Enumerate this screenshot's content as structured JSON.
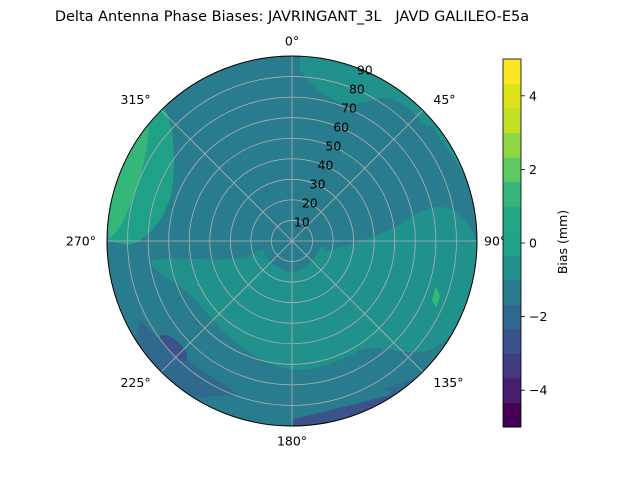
{
  "chart_data": {
    "type": "polar_contour",
    "title": "Delta Antenna Phase Biases: JAVRINGANT_3L   JAVD GALILEO-E5a",
    "azimuth_ticks": [
      "0°",
      "45°",
      "90°",
      "135°",
      "180°",
      "225°",
      "270°",
      "315°"
    ],
    "radial_ticks": [
      "10",
      "20",
      "30",
      "40",
      "50",
      "60",
      "70",
      "80",
      "90"
    ],
    "radial_range": [
      0,
      90
    ],
    "grid": true,
    "colorbar": {
      "label": "Bias (mm)",
      "ticks": [
        "−4",
        "−2",
        "0",
        "2",
        "4"
      ],
      "range": [
        -5,
        5
      ],
      "levels": [
        -5,
        -4.333,
        -3.667,
        -3,
        -2.333,
        -1.667,
        -1,
        -0.333,
        0.333,
        1,
        1.667,
        2.333,
        3,
        3.667,
        4.333,
        5
      ],
      "colors": [
        "#440154",
        "#471e6e",
        "#443983",
        "#3b528b",
        "#31688e",
        "#287c8e",
        "#21908d",
        "#1fa187",
        "#22a884",
        "#35b779",
        "#5ec962",
        "#8fd744",
        "#c2df23",
        "#dde318",
        "#fde725"
      ]
    },
    "regions": [
      {
        "name": "background",
        "bias_range": [
          -1,
          -0.333
        ],
        "color": "#287c8e"
      },
      {
        "name": "inner-ring-positive",
        "bias_range": [
          -0.333,
          0.333
        ],
        "color": "#21918c"
      },
      {
        "name": "north-east-positive",
        "bias_range": [
          -0.333,
          0.333
        ],
        "color": "#21918c"
      },
      {
        "name": "east-positive",
        "bias_range": [
          -0.333,
          0.333
        ],
        "color": "#21918c"
      },
      {
        "name": "west-high",
        "bias_range": [
          0.333,
          1
        ],
        "color": "#1fa187"
      },
      {
        "name": "west-peak",
        "bias_range": [
          1,
          1.667
        ],
        "color": "#35b779"
      },
      {
        "name": "south-negative",
        "bias_range": [
          -1.667,
          -1
        ],
        "color": "#31688e"
      },
      {
        "name": "southwest-dip",
        "bias_range": [
          -2.333,
          -1.667
        ],
        "color": "#3b528b"
      }
    ]
  }
}
